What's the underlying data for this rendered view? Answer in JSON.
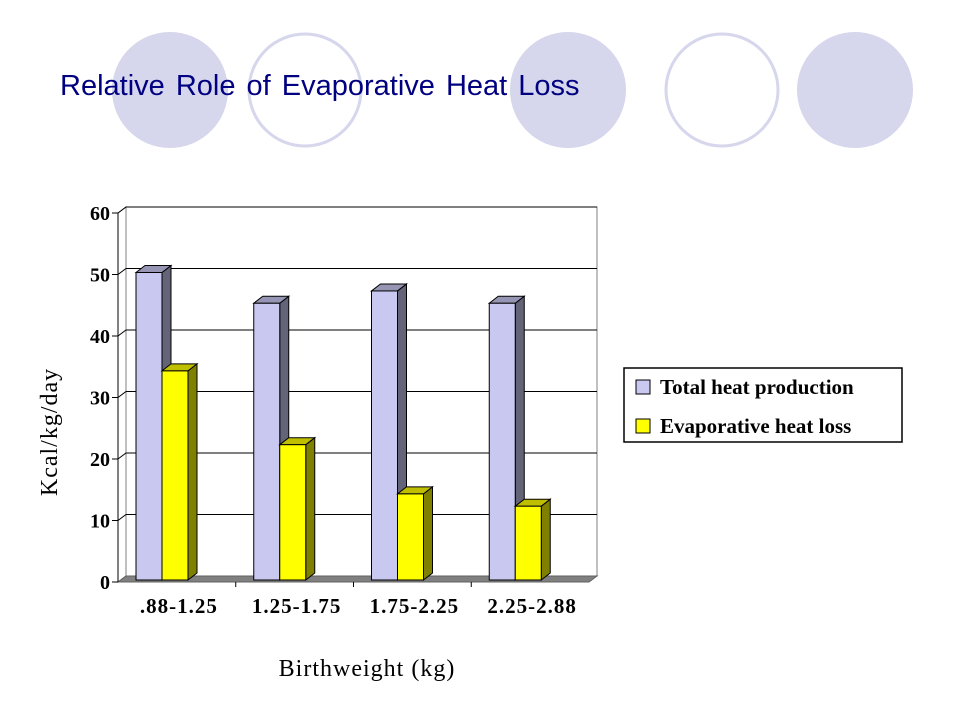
{
  "title": "Relative Role of Evaporative Heat Loss",
  "colors": {
    "circle_fill": "#d6d6ec",
    "circle_ring": "#d6d6ec",
    "title": "#000080",
    "total_heat_production": "#c8c8f0",
    "evaporative_heat_loss": "#ffff00"
  },
  "chart_data": {
    "type": "bar",
    "xlabel": "Birthweight (kg)",
    "ylabel": "Kcal/kg/day",
    "categories": [
      ".88-1.25",
      "1.25-1.75",
      "1.75-2.25",
      "2.25-2.88"
    ],
    "series": [
      {
        "name": "Total heat production",
        "values": [
          50,
          45,
          47,
          45
        ]
      },
      {
        "name": "Evaporative heat loss",
        "values": [
          34,
          22,
          14,
          12
        ]
      }
    ],
    "ylim": [
      0,
      60
    ],
    "yticks": [
      0,
      10,
      20,
      30,
      40,
      50,
      60
    ],
    "grid": true,
    "legend": "right",
    "style": "3d"
  }
}
